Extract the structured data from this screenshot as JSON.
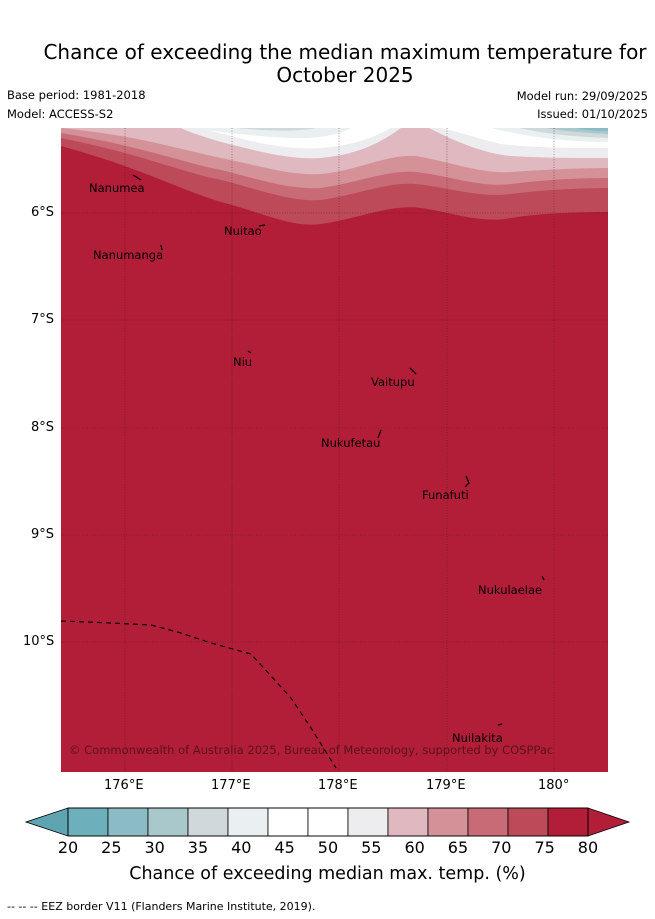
{
  "title": {
    "line1": "Chance of exceeding the median maximum temperature for",
    "line2": "October 2025"
  },
  "meta": {
    "base_period": "Base period: 1981-2018",
    "model": "Model: ACCESS-S2",
    "model_run": "Model run: 29/09/2025",
    "issued": "Issued: 01/10/2025"
  },
  "map": {
    "lat_labels": [
      "6°S",
      "7°S",
      "8°S",
      "9°S",
      "10°S"
    ],
    "lon_labels": [
      "176°E",
      "177°E",
      "178°E",
      "179°E",
      "180°"
    ],
    "places": [
      "Nanumea",
      "Nuitao",
      "Nanumanga",
      "Niu",
      "Vaitupu",
      "Nukufetau",
      "Funafuti",
      "Nukulaelae",
      "Nuilakita"
    ],
    "attribution": "© Commonwealth of Australia 2025, Bureau of Meteorology, supported by COSPPac",
    "dominant_fill": "#b21e37"
  },
  "colorbar": {
    "ticks": [
      "20",
      "25",
      "30",
      "35",
      "40",
      "45",
      "50",
      "55",
      "60",
      "65",
      "70",
      "75",
      "80"
    ],
    "colors": [
      "#6dafba",
      "#8bbcc5",
      "#a9c8cc",
      "#cfd8db",
      "#eaf0f2",
      "#ffffff",
      "#ffffff",
      "#ededf0",
      "#e0b8bf",
      "#d49198",
      "#c86b77",
      "#bd4a58",
      "#b21e37"
    ],
    "low_color": "#5ea4b1",
    "high_color": "#b21e37",
    "title": "Chance of exceeding median max. temp. (%)"
  },
  "footnote": "--  --  -- EEZ border V11 (Flanders Marine Institute, 2019)."
}
